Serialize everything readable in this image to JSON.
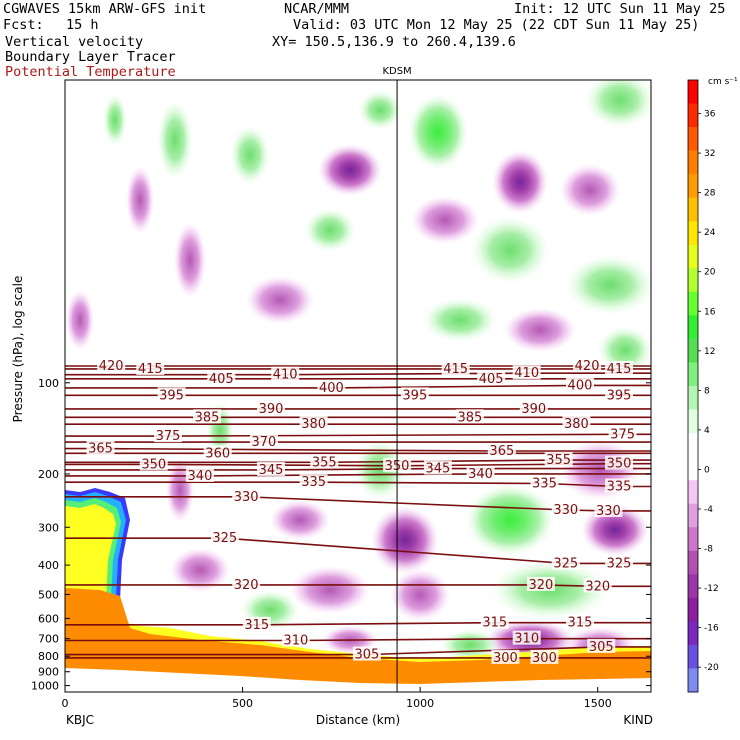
{
  "header": {
    "model": "CGWAVES 15km ARW-GFS init",
    "org": "NCAR/MMM",
    "init": "Init: 12 UTC Sun 11 May 25",
    "fcst_label": "Fcst:",
    "fcst_value": "15 h",
    "valid": "Valid: 03 UTC Mon 12 May 25 (22 CDT Sun 11 May 25)",
    "field1": "Vertical velocity",
    "xy": "XY= 150.5,136.9 to 260.4,139.6",
    "field2": "Boundary Layer Tracer",
    "field3": "Potential Temperature"
  },
  "chart_data": {
    "type": "heatmap",
    "xlabel": "Distance (km)",
    "ylabel": "Pressure (hPa), log scale",
    "xlim": [
      0,
      1650
    ],
    "ylim": [
      1050,
      10
    ],
    "yscale": "log",
    "x_ticks": [
      "0",
      "500",
      "1000",
      "1500"
    ],
    "y_ticks": [
      100,
      200,
      300,
      400,
      500,
      600,
      700,
      800,
      900,
      1000
    ],
    "x_start_station": "KBJC",
    "x_end_station": "KIND",
    "marker_station": "KDSM",
    "marker_x": 935,
    "colorbar": {
      "unit": "cm s⁻¹",
      "tick_labels": [
        "36",
        "32",
        "28",
        "24",
        "20",
        "16",
        "12",
        "8",
        "4",
        "0",
        "-4",
        "-8",
        "-12",
        "-16",
        "-20"
      ],
      "colors": [
        "#ff0000",
        "#ff2a00",
        "#ff5a00",
        "#ff7d00",
        "#ff9a00",
        "#ffc000",
        "#ffe600",
        "#e6ff1a",
        "#b0ff30",
        "#66ff33",
        "#33ee33",
        "#55dd55",
        "#80ee80",
        "#b5f5b5",
        "#e0ffe0",
        "#ffffff",
        "#ffffff",
        "#f3c8f3",
        "#e0a0e0",
        "#cc77cc",
        "#b050b0",
        "#9c35a6",
        "#8a1fa0",
        "#7a28c0",
        "#6a50e0",
        "#7a8cf0"
      ]
    },
    "theta_labels": [
      {
        "value": 420,
        "x": 130,
        "p": 88
      },
      {
        "value": 415,
        "x": 240,
        "p": 90
      },
      {
        "value": 405,
        "x": 440,
        "p": 97
      },
      {
        "value": 410,
        "x": 620,
        "p": 94
      },
      {
        "value": 400,
        "x": 750,
        "p": 104
      },
      {
        "value": 395,
        "x": 300,
        "p": 110
      },
      {
        "value": 390,
        "x": 580,
        "p": 122
      },
      {
        "value": 385,
        "x": 400,
        "p": 130
      },
      {
        "value": 380,
        "x": 700,
        "p": 137
      },
      {
        "value": 375,
        "x": 290,
        "p": 150
      },
      {
        "value": 370,
        "x": 560,
        "p": 157
      },
      {
        "value": 365,
        "x": 100,
        "p": 165
      },
      {
        "value": 360,
        "x": 430,
        "p": 171
      },
      {
        "value": 355,
        "x": 730,
        "p": 183
      },
      {
        "value": 350,
        "x": 250,
        "p": 186
      },
      {
        "value": 345,
        "x": 580,
        "p": 194
      },
      {
        "value": 340,
        "x": 380,
        "p": 203
      },
      {
        "value": 335,
        "x": 700,
        "p": 213
      },
      {
        "value": 330,
        "x": 510,
        "p": 238
      },
      {
        "value": 325,
        "x": 450,
        "p": 326
      },
      {
        "value": 320,
        "x": 510,
        "p": 465
      },
      {
        "value": 315,
        "x": 540,
        "p": 630
      },
      {
        "value": 310,
        "x": 650,
        "p": 710
      },
      {
        "value": 305,
        "x": 850,
        "p": 790
      },
      {
        "value": 415,
        "x": 1100,
        "p": 90
      },
      {
        "value": 405,
        "x": 1200,
        "p": 97
      },
      {
        "value": 410,
        "x": 1300,
        "p": 93
      },
      {
        "value": 420,
        "x": 1470,
        "p": 88
      },
      {
        "value": 415,
        "x": 1560,
        "p": 90
      },
      {
        "value": 400,
        "x": 1450,
        "p": 102
      },
      {
        "value": 395,
        "x": 985,
        "p": 110
      },
      {
        "value": 395,
        "x": 1560,
        "p": 110
      },
      {
        "value": 390,
        "x": 1320,
        "p": 122
      },
      {
        "value": 385,
        "x": 1140,
        "p": 130
      },
      {
        "value": 380,
        "x": 1440,
        "p": 137
      },
      {
        "value": 375,
        "x": 1570,
        "p": 148
      },
      {
        "value": 365,
        "x": 1230,
        "p": 168
      },
      {
        "value": 355,
        "x": 1390,
        "p": 180
      },
      {
        "value": 350,
        "x": 1560,
        "p": 185
      },
      {
        "value": 350,
        "x": 935,
        "p": 188
      },
      {
        "value": 345,
        "x": 1050,
        "p": 192
      },
      {
        "value": 340,
        "x": 1170,
        "p": 200
      },
      {
        "value": 335,
        "x": 1350,
        "p": 215
      },
      {
        "value": 335,
        "x": 1560,
        "p": 220
      },
      {
        "value": 330,
        "x": 1410,
        "p": 263
      },
      {
        "value": 330,
        "x": 1530,
        "p": 265
      },
      {
        "value": 325,
        "x": 1410,
        "p": 395
      },
      {
        "value": 325,
        "x": 1560,
        "p": 395
      },
      {
        "value": 320,
        "x": 1340,
        "p": 465
      },
      {
        "value": 320,
        "x": 1500,
        "p": 470
      },
      {
        "value": 315,
        "x": 1210,
        "p": 620
      },
      {
        "value": 315,
        "x": 1450,
        "p": 620
      },
      {
        "value": 310,
        "x": 1300,
        "p": 700
      },
      {
        "value": 305,
        "x": 1510,
        "p": 745
      },
      {
        "value": 300,
        "x": 1240,
        "p": 810
      },
      {
        "value": 300,
        "x": 1350,
        "p": 810
      }
    ]
  }
}
